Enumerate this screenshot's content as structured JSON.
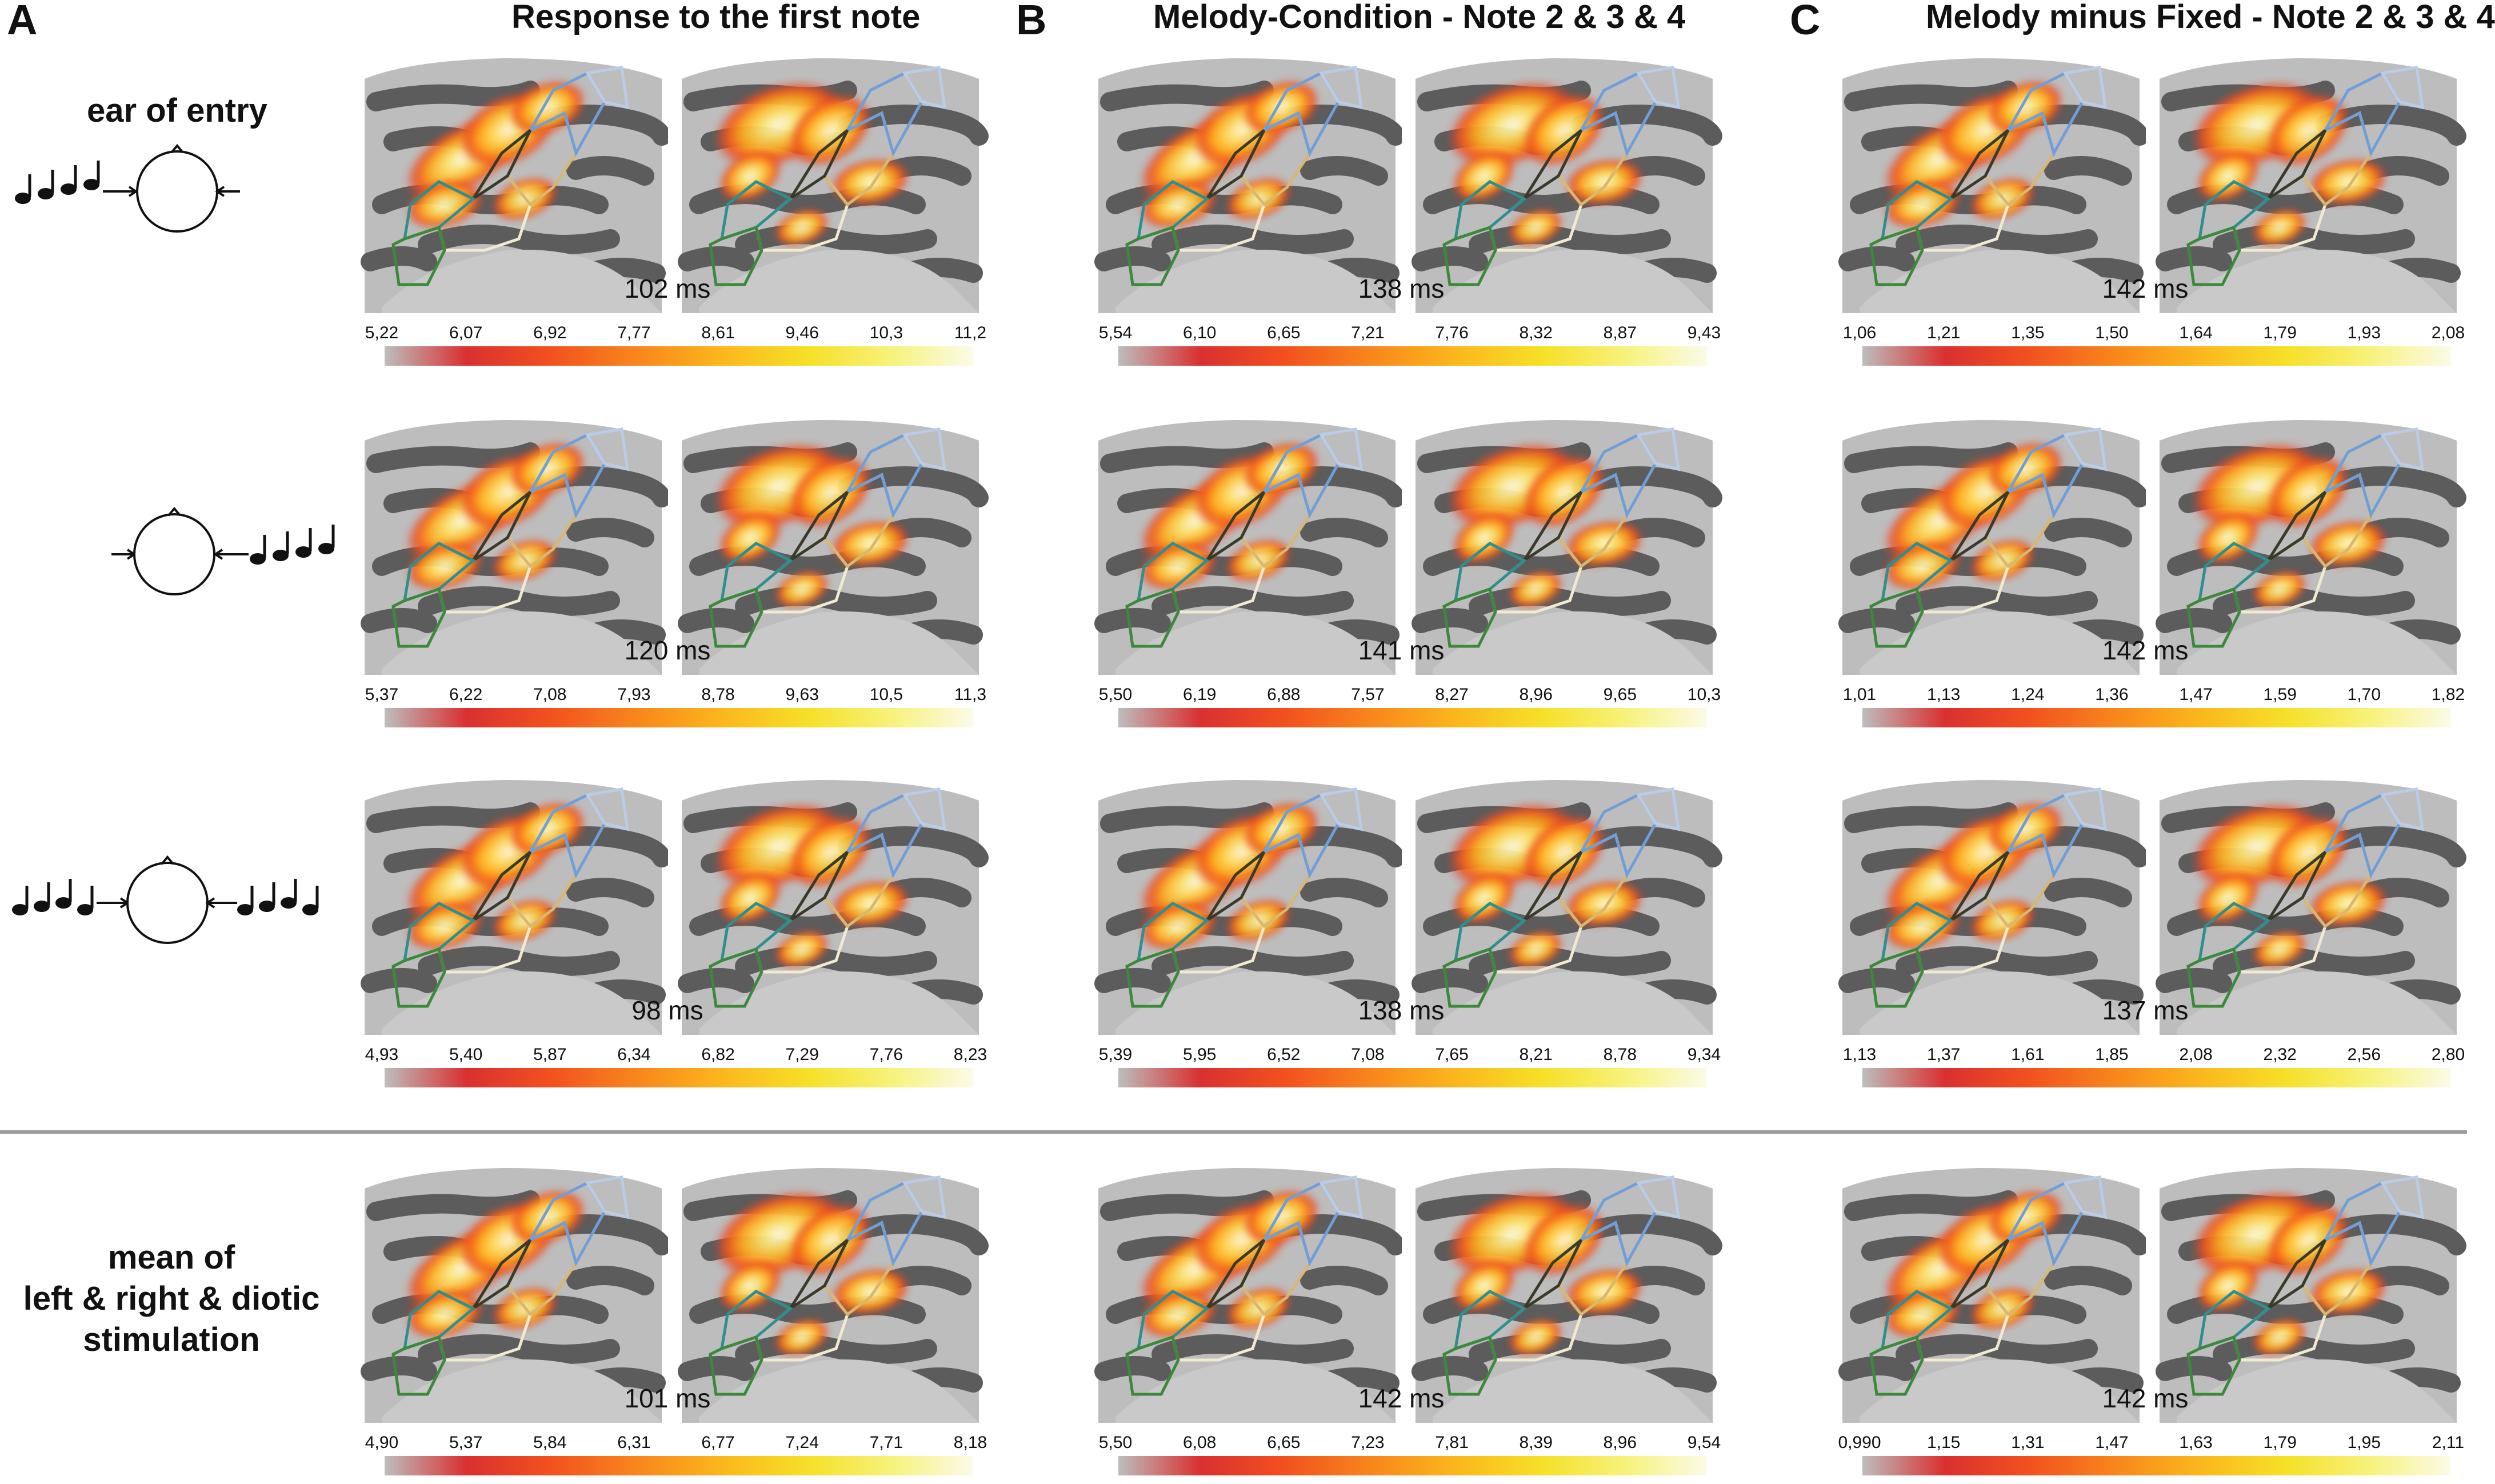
{
  "panels": [
    {
      "letter": "A",
      "title": "Response to the first note"
    },
    {
      "letter": "B",
      "title": "Melody-Condition - Note 2 & 3 & 4"
    },
    {
      "letter": "C",
      "title": "Melody minus Fixed - Note 2 & 3 & 4"
    }
  ],
  "row_labels": {
    "r0": "ear of entry",
    "r3_line1": "mean of",
    "r3_line2": "left & right & diotic",
    "r3_line3": "stimulation"
  },
  "grid": [
    [
      {
        "time": "102 ms",
        "ticks": [
          "5,22",
          "6,07",
          "6,92",
          "7,77",
          "8,61",
          "9,46",
          "10,3",
          "11,2"
        ]
      },
      {
        "time": "138 ms",
        "ticks": [
          "5,54",
          "6,10",
          "6,65",
          "7,21",
          "7,76",
          "8,32",
          "8,87",
          "9,43"
        ]
      },
      {
        "time": "142 ms",
        "ticks": [
          "1,06",
          "1,21",
          "1,35",
          "1,50",
          "1,64",
          "1,79",
          "1,93",
          "2,08"
        ]
      }
    ],
    [
      {
        "time": "120 ms",
        "ticks": [
          "5,37",
          "6,22",
          "7,08",
          "7,93",
          "8,78",
          "9,63",
          "10,5",
          "11,3"
        ]
      },
      {
        "time": "141 ms",
        "ticks": [
          "5,50",
          "6,19",
          "6,88",
          "7,57",
          "8,27",
          "8,96",
          "9,65",
          "10,3"
        ]
      },
      {
        "time": "142 ms",
        "ticks": [
          "1,01",
          "1,13",
          "1,24",
          "1,36",
          "1,47",
          "1,59",
          "1,70",
          "1,82"
        ]
      }
    ],
    [
      {
        "time": "98 ms",
        "ticks": [
          "4,93",
          "5,40",
          "5,87",
          "6,34",
          "6,82",
          "7,29",
          "7,76",
          "8,23"
        ]
      },
      {
        "time": "138 ms",
        "ticks": [
          "5,39",
          "5,95",
          "6,52",
          "7,08",
          "7,65",
          "8,21",
          "8,78",
          "9,34"
        ]
      },
      {
        "time": "137 ms",
        "ticks": [
          "1,13",
          "1,37",
          "1,61",
          "1,85",
          "2,08",
          "2,32",
          "2,56",
          "2,80"
        ]
      }
    ],
    [
      {
        "time": "101 ms",
        "ticks": [
          "4,90",
          "5,37",
          "5,84",
          "6,31",
          "6,77",
          "7,24",
          "7,71",
          "8,18"
        ]
      },
      {
        "time": "142 ms",
        "ticks": [
          "5,50",
          "6,08",
          "6,65",
          "7,23",
          "7,81",
          "8,39",
          "8,96",
          "9,54"
        ]
      },
      {
        "time": "142 ms",
        "ticks": [
          "0,990",
          "1,15",
          "1,31",
          "1,47",
          "1,63",
          "1,79",
          "1,95",
          "2,11"
        ]
      }
    ]
  ],
  "colors": {
    "cortex_dark": "#5c5c5c",
    "cortex_light": "#bdbdbd",
    "roi_blue": "#6f9fd8",
    "roi_lightblue": "#b9cde8",
    "roi_teal": "#2f8e8e",
    "roi_green": "#3a8a3a",
    "roi_tan": "#d8b870",
    "roi_cream": "#f2ead0",
    "roi_dark": "#3a3a2a"
  }
}
